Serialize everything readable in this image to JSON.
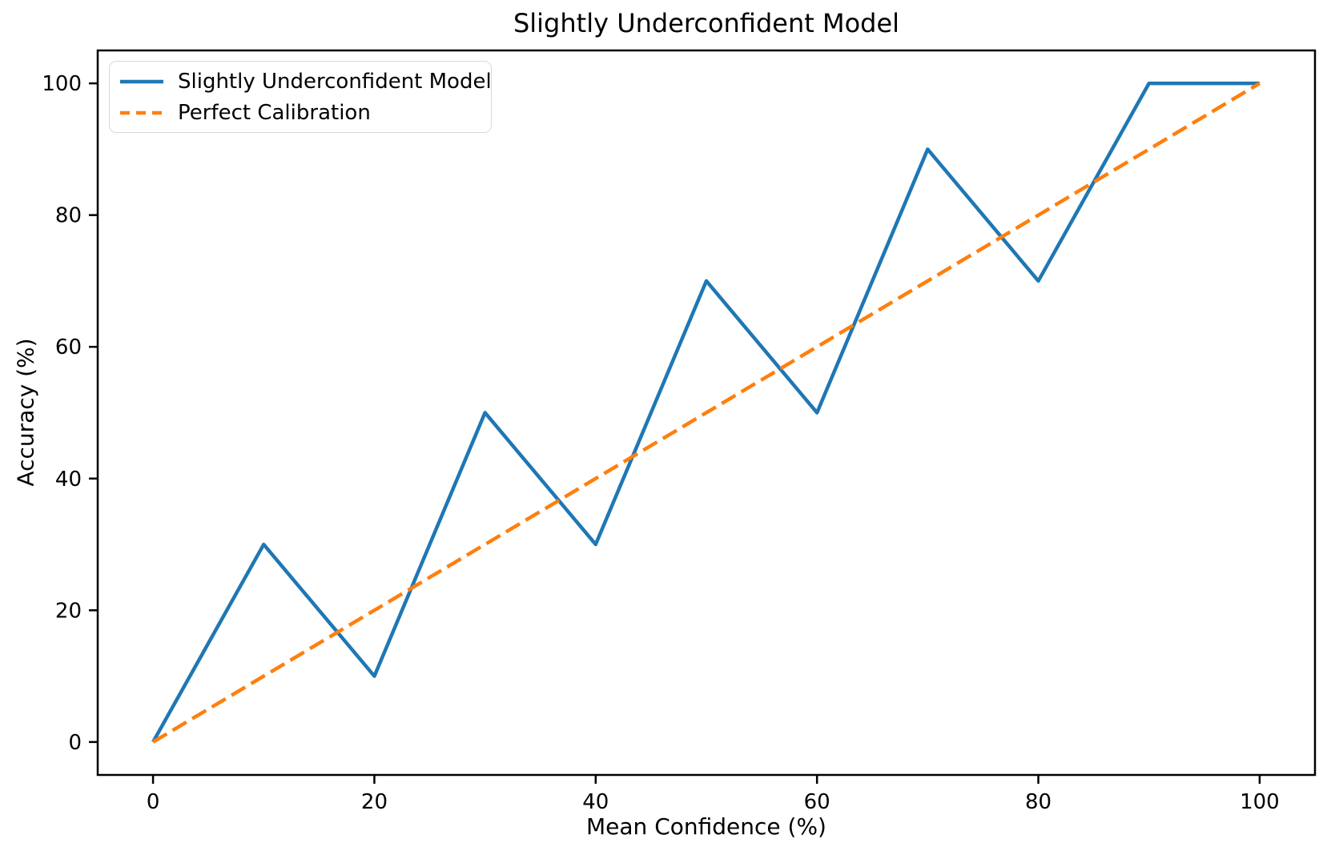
{
  "chart_data": {
    "type": "line",
    "title": "Slightly Underconfident Model",
    "xlabel": "Mean Confidence (%)",
    "ylabel": "Accuracy (%)",
    "xlim": [
      -5,
      105
    ],
    "ylim": [
      -5,
      105
    ],
    "x_ticks": [
      0,
      20,
      40,
      60,
      80,
      100
    ],
    "y_ticks": [
      0,
      20,
      40,
      60,
      80,
      100
    ],
    "grid": false,
    "legend_position": "upper-left",
    "x": [
      0,
      10,
      20,
      30,
      40,
      50,
      60,
      70,
      80,
      90,
      100
    ],
    "series": [
      {
        "name": "Slightly Underconfident Model",
        "x": [
          0,
          10,
          20,
          30,
          40,
          50,
          60,
          70,
          80,
          90,
          100
        ],
        "values": [
          0,
          30,
          10,
          50,
          30,
          70,
          50,
          90,
          70,
          100,
          100
        ],
        "color": "#1f77b4",
        "style": "solid"
      },
      {
        "name": "Perfect Calibration",
        "x": [
          0,
          100
        ],
        "values": [
          0,
          100
        ],
        "color": "#ff7f0e",
        "style": "dashed"
      }
    ]
  },
  "colors": {
    "spine": "#000000",
    "text": "#000000",
    "legend_border": "#d9d9d9"
  }
}
